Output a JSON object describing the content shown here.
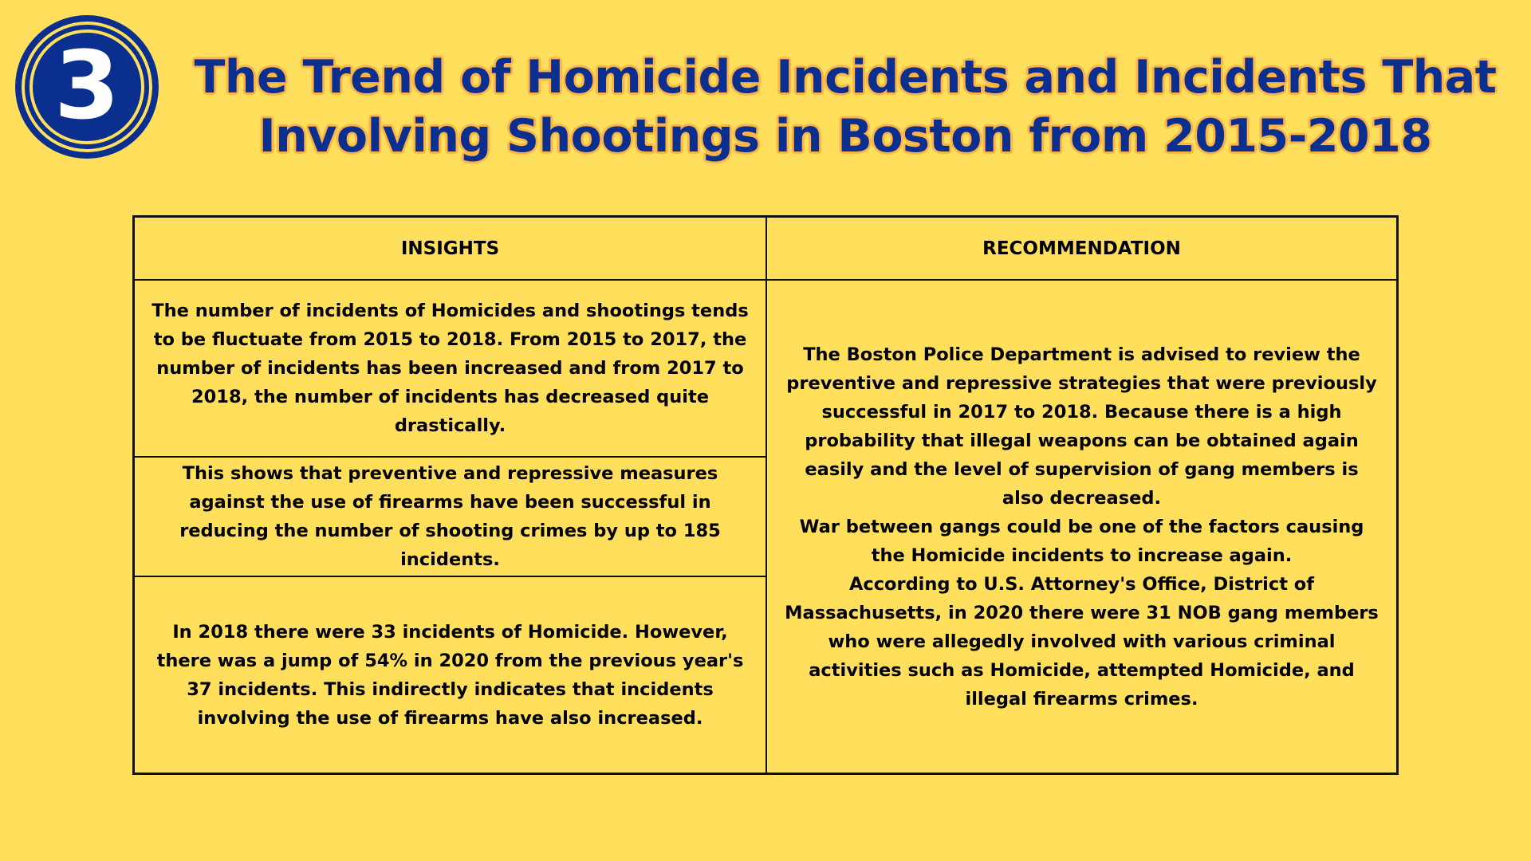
{
  "badge": {
    "number": "3"
  },
  "header": {
    "title_line1": "The Trend of Homicide Incidents and Incidents That",
    "title_line2": "Involving Shootings in Boston from 2015-2018"
  },
  "table": {
    "headers": {
      "insights": "INSIGHTS",
      "recommendation": "RECOMMENDATION"
    },
    "insights": [
      "The number of incidents of Homicides and shootings tends to be fluctuate from 2015 to 2018. From 2015 to 2017, the number of incidents has been increased and from 2017 to 2018, the number of incidents has decreased quite drastically.",
      "This shows that preventive and repressive measures against the use of firearms have been successful in reducing the number of shooting crimes by up to 185 incidents.",
      "In 2018 there were 33 incidents of Homicide. However, there was a jump of 54% in 2020 from the previous year's 37 incidents. This indirectly indicates that incidents involving the use of firearms have also increased."
    ],
    "recommendation": [
      "The Boston Police Department is advised to review the preventive and repressive strategies that were previously successful in 2017 to 2018. Because there is a high probability that illegal weapons can be obtained again easily and the level of supervision of gang members is also decreased.",
      "War between gangs could be one of the factors causing the Homicide incidents to increase again.",
      "According to U.S. Attorney's Office, District of Massachusetts, in 2020 there were 31 NOB gang members who were allegedly involved with various criminal activities such as Homicide, attempted Homicide, and illegal firearms crimes."
    ]
  },
  "colors": {
    "background": "#FFDF5C",
    "title": "#0B2F8E",
    "title_outline": "#FFB347",
    "badge": "#0B2F8E",
    "border": "#111111"
  }
}
